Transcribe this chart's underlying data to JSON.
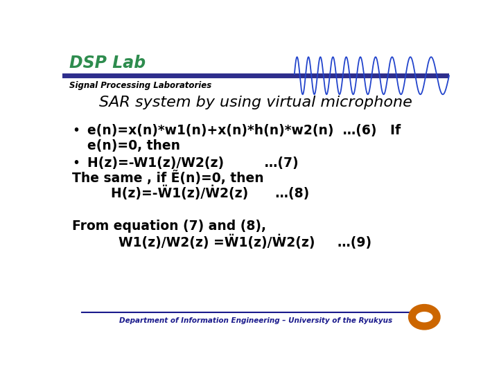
{
  "bg_color": "#ffffff",
  "header_line_color": "#2e2e8c",
  "dsp_lab_text": "DSP Lab",
  "dsp_lab_color": "#2e8c4e",
  "subtitle_text": "Signal Processing Laboratories",
  "title_text": "SAR system by using virtual microphone",
  "footer_text": "Department of Information Engineering – University of the Ryukyus",
  "footer_color": "#1a1a8c",
  "footer_line_color": "#1a1a8c",
  "main_text_color": "#000000",
  "wave_color": "#2244cc"
}
